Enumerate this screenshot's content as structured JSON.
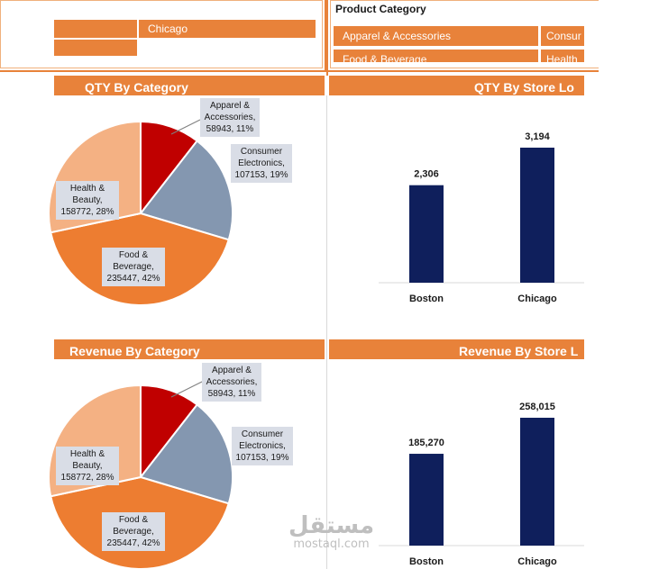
{
  "store_slicer": {
    "items": [
      "",
      "Chicago",
      ""
    ]
  },
  "category_slicer": {
    "title": "Product Category",
    "items": [
      "Apparel & Accessories",
      "Consur",
      "Food & Beverage",
      "Health"
    ]
  },
  "colors": {
    "accent": "#e8823a",
    "bar": "#0f1f5c",
    "apparel": "#c00000",
    "electronics": "#8497b0",
    "food": "#ed7d31",
    "health": "#f4b183"
  },
  "chart_data": [
    {
      "type": "pie",
      "title": "QTY By Category",
      "categories": [
        "Apparel & Accessories",
        "Consumer Electronics",
        "Food & Beverage",
        "Health & Beauty"
      ],
      "values": [
        58943,
        107153,
        235447,
        158772
      ],
      "percent_labels": [
        "11%",
        "19%",
        "42%",
        "28%"
      ],
      "data_labels": [
        "Apparel & Accessories, 58943, 11%",
        "Consumer Electronics, 107153, 19%",
        "Food & Beverage, 235447, 42%",
        "Health & Beauty, 158772, 28%"
      ]
    },
    {
      "type": "bar",
      "title": "QTY By Store Lo",
      "categories": [
        "Boston",
        "Chicago"
      ],
      "values": [
        2306,
        3194
      ],
      "value_labels": [
        "2,306",
        "3,194"
      ]
    },
    {
      "type": "pie",
      "title": "Revenue By Category",
      "categories": [
        "Apparel & Accessories",
        "Consumer Electronics",
        "Food & Beverage",
        "Health & Beauty"
      ],
      "values": [
        58943,
        107153,
        235447,
        158772
      ],
      "percent_labels": [
        "11%",
        "19%",
        "42%",
        "28%"
      ],
      "data_labels": [
        "Apparel & Accessories, 58943, 11%",
        "Consumer Electronics, 107153, 19%",
        "Food & Beverage, 235447, 42%",
        "Health & Beauty, 158772, 28%"
      ]
    },
    {
      "type": "bar",
      "title": "Revenue By Store L",
      "categories": [
        "Boston",
        "Chicago"
      ],
      "values": [
        185270,
        258015
      ],
      "value_labels": [
        "185,270",
        "258,015"
      ]
    }
  ],
  "pie_labels": [
    {
      "l1": "Apparel &",
      "l2": "Accessories,",
      "l3": "58943, 11%"
    },
    {
      "l1": "Consumer",
      "l2": "Electronics,",
      "l3": "107153, 19%"
    },
    {
      "l1": "Food &",
      "l2": "Beverage,",
      "l3": "235447, 42%"
    },
    {
      "l1": "Health &",
      "l2": "Beauty,",
      "l3": "158772, 28%"
    }
  ],
  "watermark": {
    "arabic": "مستقل",
    "latin": "mostaql.com"
  }
}
